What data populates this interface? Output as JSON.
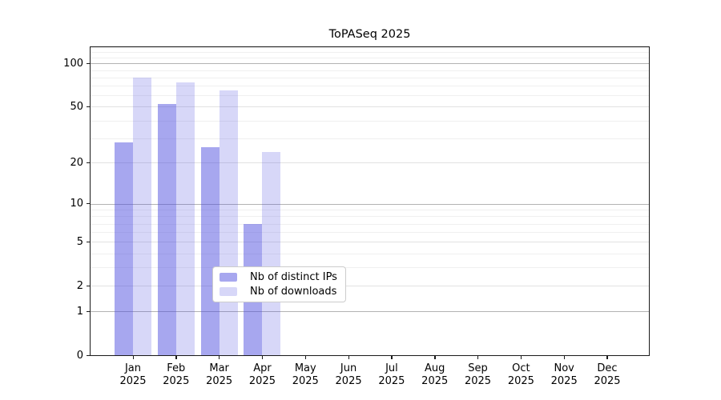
{
  "title": "ToPASeq 2025",
  "chart_data": {
    "type": "bar",
    "title": "ToPASeq 2025",
    "x_year": "2025",
    "categories": [
      "Jan",
      "Feb",
      "Mar",
      "Apr",
      "May",
      "Jun",
      "Jul",
      "Aug",
      "Sep",
      "Oct",
      "Nov",
      "Dec"
    ],
    "series": [
      {
        "key": "distinct-ips",
        "name": "Nb of distinct IPs",
        "color": "rgba(68,68,221,0.47)",
        "values": [
          28,
          52,
          26,
          7,
          null,
          null,
          null,
          null,
          null,
          null,
          null,
          null
        ]
      },
      {
        "key": "downloads",
        "name": "Nb of downloads",
        "color": "rgba(68,68,221,0.21)",
        "values": [
          80,
          74,
          65,
          24,
          null,
          null,
          null,
          null,
          null,
          null,
          null,
          null
        ]
      }
    ],
    "y_scale": "log10(1+x)",
    "y_ticks": [
      100,
      50,
      20,
      10,
      5,
      2,
      1,
      0
    ],
    "ylim": [
      0,
      130
    ],
    "grid": true,
    "legend_position": "inside-bottom-center"
  }
}
